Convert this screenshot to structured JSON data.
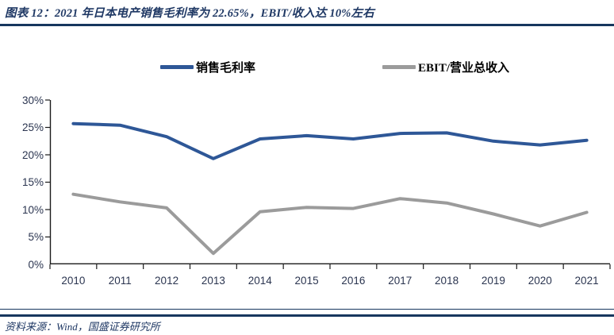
{
  "header": {
    "title": "图表 12：2021 年日本电产销售毛利率为 22.65%，EBIT/收入达 10%左右"
  },
  "colors": {
    "accent_navy": "#1F3864",
    "rule_navy": "#17375E",
    "series_blue": "#2E5797",
    "series_gray": "#9B9B9B",
    "axis_line": "#1a1a1a",
    "axis_label": "#2b3550"
  },
  "chart_data": {
    "type": "line",
    "title": "2021 年日本电产销售毛利率为 22.65%，EBIT/收入达 10%左右",
    "categories": [
      "2010",
      "2011",
      "2012",
      "2013",
      "2014",
      "2015",
      "2016",
      "2017",
      "2018",
      "2019",
      "2020",
      "2021"
    ],
    "series": [
      {
        "name": "销售毛利率",
        "color": "#2E5797",
        "values": [
          25.7,
          25.4,
          23.3,
          19.3,
          22.9,
          23.5,
          22.9,
          23.9,
          24.0,
          22.5,
          21.8,
          22.65
        ]
      },
      {
        "name": "EBIT/营业总收入",
        "color": "#9B9B9B",
        "values": [
          12.8,
          11.4,
          10.3,
          2.0,
          9.6,
          10.4,
          10.2,
          12.0,
          11.2,
          9.2,
          7.0,
          9.5
        ]
      }
    ],
    "xlabel": "",
    "ylabel": "",
    "ylim": [
      0,
      30
    ],
    "y_tick_step": 5,
    "y_tick_labels": [
      "0%",
      "5%",
      "10%",
      "15%",
      "20%",
      "25%",
      "30%"
    ],
    "grid": false,
    "legend_position": "top"
  },
  "footer": {
    "source": "资料来源：Wind，国盛证券研究所"
  }
}
